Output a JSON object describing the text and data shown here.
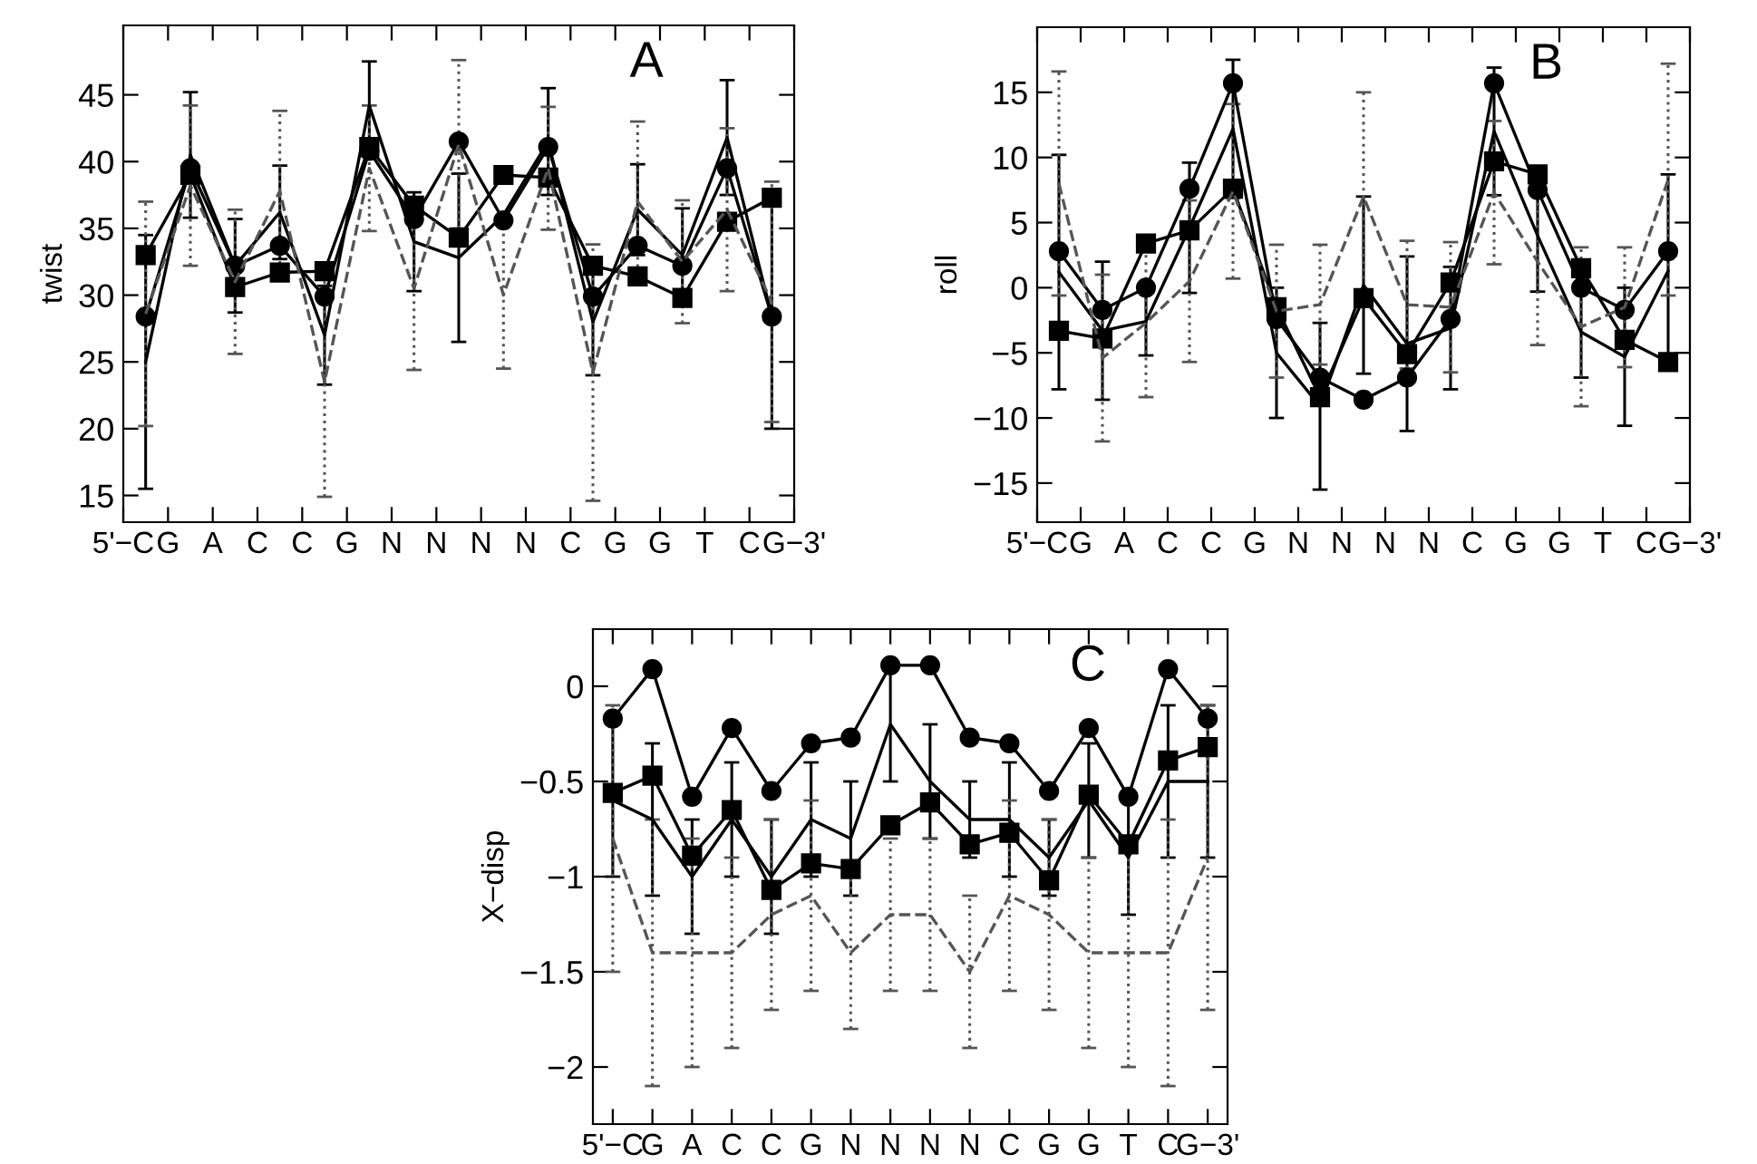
{
  "chart_data": [
    {
      "type": "line",
      "ylabel": "twist",
      "annotations": [
        "A"
      ],
      "categories": [
        "5'−C",
        null,
        "G",
        null,
        "A",
        null,
        "C",
        null,
        "C",
        null,
        "G",
        null,
        "N",
        null,
        "N",
        null,
        "N",
        null,
        "N",
        null,
        "C",
        null,
        "G",
        null,
        "G",
        null,
        "T",
        null,
        "C",
        null,
        "G−3'"
      ],
      "ylim": [
        13,
        50.2
      ],
      "yticks": [
        15,
        20,
        25,
        30,
        35,
        40,
        45
      ],
      "grid": false,
      "legend": false,
      "series": [
        {
          "color": "#000000",
          "marker": "circle",
          "line_style": "solid",
          "values": [
            null,
            28.4,
            null,
            39.5,
            null,
            32.2,
            null,
            33.7,
            null,
            29.9,
            null,
            40.8,
            null,
            35.7,
            null,
            41.5,
            null,
            35.6,
            null,
            41.1,
            null,
            29.9,
            null,
            33.7,
            null,
            32.2,
            null,
            39.5,
            null,
            28.4,
            null
          ]
        },
        {
          "color": "#000000",
          "marker": "square",
          "line_style": "solid",
          "values": [
            null,
            33.0,
            null,
            39.0,
            null,
            30.6,
            null,
            31.7,
            null,
            31.8,
            null,
            41.1,
            null,
            36.7,
            null,
            34.3,
            null,
            39.0,
            null,
            38.8,
            null,
            32.2,
            null,
            31.4,
            null,
            29.8,
            null,
            35.5,
            null,
            37.3,
            null
          ]
        },
        {
          "color": "#000000",
          "marker": "none",
          "line_style": "solid",
          "values": [
            null,
            25.0,
            null,
            40.5,
            null,
            32.2,
            null,
            36.2,
            null,
            27.0,
            null,
            44.2,
            null,
            34.0,
            null,
            32.8,
            null,
            36.0,
            null,
            41.5,
            null,
            28.0,
            null,
            36.4,
            null,
            33.0,
            null,
            41.8,
            null,
            28.4,
            null
          ],
          "errors": [
            null,
            9.5,
            null,
            4.7,
            null,
            3.5,
            null,
            3.5,
            null,
            3.7,
            null,
            3.3,
            null,
            3.7,
            null,
            6.3,
            null,
            null,
            null,
            4.0,
            null,
            4.0,
            null,
            3.4,
            null,
            3.5,
            null,
            4.3,
            null,
            8.4,
            null
          ]
        },
        {
          "color": "#555555",
          "marker": "none",
          "line_style": "dashed",
          "values": [
            null,
            28.6,
            null,
            38.2,
            null,
            31.0,
            null,
            37.8,
            null,
            23.5,
            null,
            39.5,
            null,
            30.5,
            null,
            41.3,
            null,
            30.0,
            null,
            39.5,
            null,
            24.2,
            null,
            37.0,
            null,
            32.5,
            null,
            36.4,
            null,
            29.5,
            null
          ],
          "errors": [
            null,
            8.4,
            null,
            6.0,
            null,
            5.4,
            null,
            6.0,
            null,
            8.6,
            null,
            4.7,
            null,
            6.1,
            null,
            6.3,
            null,
            5.5,
            null,
            4.6,
            null,
            9.6,
            null,
            6.0,
            null,
            4.6,
            null,
            6.1,
            null,
            9.0,
            null
          ]
        }
      ]
    },
    {
      "type": "line",
      "ylabel": "roll",
      "annotations": [
        "B"
      ],
      "categories": [
        "5'−C",
        null,
        "G",
        null,
        "A",
        null,
        "C",
        null,
        "C",
        null,
        "G",
        null,
        "N",
        null,
        "N",
        null,
        "N",
        null,
        "N",
        null,
        "C",
        null,
        "G",
        null,
        "G",
        null,
        "T",
        null,
        "C",
        null,
        "G−3'"
      ],
      "ylim": [
        -18,
        20
      ],
      "yticks": [
        {
          "value": -15,
          "label": "−15"
        },
        {
          "value": -10,
          "label": "−10"
        },
        {
          "value": -5,
          "label": "−5"
        },
        0,
        5,
        10,
        15
      ],
      "grid": false,
      "legend": false,
      "series": [
        {
          "color": "#000000",
          "marker": "circle",
          "line_style": "solid",
          "values": [
            null,
            2.8,
            null,
            -1.7,
            null,
            0,
            null,
            7.6,
            null,
            15.7,
            null,
            -2.4,
            null,
            -6.9,
            null,
            -8.6,
            null,
            -6.9,
            null,
            -2.4,
            null,
            15.7,
            null,
            7.5,
            null,
            0,
            null,
            -1.7,
            null,
            2.8,
            null
          ]
        },
        {
          "color": "#000000",
          "marker": "square",
          "line_style": "solid",
          "values": [
            null,
            -3.3,
            null,
            -3.9,
            null,
            3.4,
            null,
            4.4,
            null,
            7.6,
            null,
            -1.5,
            null,
            -8.4,
            null,
            -0.8,
            null,
            -5.1,
            null,
            0.4,
            null,
            9.7,
            null,
            8.7,
            null,
            1.5,
            null,
            -4.0,
            null,
            -5.7,
            null
          ]
        },
        {
          "color": "#000000",
          "marker": "none",
          "line_style": "solid",
          "values": [
            null,
            1.2,
            null,
            -3.3,
            null,
            -2.6,
            null,
            4.6,
            null,
            12.2,
            null,
            -5.0,
            null,
            -9.1,
            null,
            0.2,
            null,
            -4.3,
            null,
            -3.1,
            null,
            12.0,
            null,
            4.0,
            null,
            -3.4,
            null,
            -5.3,
            null,
            1.3,
            null
          ],
          "errors": [
            null,
            9.0,
            null,
            5.3,
            null,
            2.6,
            null,
            5.0,
            null,
            5.3,
            null,
            5.0,
            null,
            6.4,
            null,
            6.8,
            null,
            6.7,
            null,
            4.7,
            null,
            4.9,
            null,
            4.3,
            null,
            3.5,
            null,
            5.3,
            null,
            7.4,
            null
          ]
        },
        {
          "color": "#555555",
          "marker": "none",
          "line_style": "dashed",
          "values": [
            null,
            8.0,
            null,
            -5.4,
            null,
            -2.7,
            null,
            0.5,
            null,
            7.4,
            null,
            -1.8,
            null,
            -1.3,
            null,
            7.0,
            null,
            -1.3,
            null,
            -1.5,
            null,
            7.3,
            null,
            2.0,
            null,
            -3.0,
            null,
            -1.5,
            null,
            8.3,
            null
          ],
          "errors": [
            null,
            8.6,
            null,
            6.4,
            null,
            5.7,
            null,
            6.2,
            null,
            6.7,
            null,
            5.1,
            null,
            4.6,
            null,
            8.0,
            null,
            4.9,
            null,
            5.0,
            null,
            5.5,
            null,
            6.4,
            null,
            6.1,
            null,
            4.6,
            null,
            8.9,
            null
          ]
        }
      ]
    },
    {
      "type": "line",
      "ylabel": "X−disp",
      "annotations": [
        "C"
      ],
      "categories": [
        "5'−C",
        "G",
        "A",
        "C",
        "C",
        "G",
        "N",
        "N",
        "N",
        "N",
        "C",
        "G",
        "G",
        "T",
        "C",
        "G−3'"
      ],
      "ylim": [
        -2.3,
        0.3
      ],
      "yticks": [
        {
          "value": -2,
          "label": "−2"
        },
        {
          "value": -1.5,
          "label": "−1.5"
        },
        {
          "value": -1,
          "label": "−1"
        },
        {
          "value": -0.5,
          "label": "−0.5"
        },
        0
      ],
      "grid": false,
      "legend": false,
      "series": [
        {
          "color": "#000000",
          "marker": "circle",
          "line_style": "solid",
          "values": [
            -0.17,
            0.09,
            -0.58,
            -0.22,
            -0.55,
            -0.3,
            -0.27,
            0.11,
            0.11,
            -0.27,
            -0.3,
            -0.55,
            -0.22,
            -0.58,
            0.09,
            -0.17
          ]
        },
        {
          "color": "#000000",
          "marker": "square",
          "line_style": "solid",
          "values": [
            -0.56,
            -0.47,
            -0.89,
            -0.65,
            -1.07,
            -0.93,
            -0.96,
            -0.73,
            -0.61,
            -0.83,
            -0.77,
            -1.02,
            -0.57,
            -0.83,
            -0.39,
            -0.32
          ]
        },
        {
          "color": "#000000",
          "marker": "none",
          "line_style": "solid",
          "values": [
            -0.6,
            -0.7,
            -1.0,
            -0.7,
            -1.0,
            -0.7,
            -0.8,
            -0.2,
            -0.5,
            -0.7,
            -0.7,
            -0.9,
            -0.6,
            -0.9,
            -0.5,
            -0.5
          ],
          "errors": [
            0.4,
            0.4,
            0.3,
            0.3,
            0.3,
            0.3,
            0.3,
            0.3,
            0.3,
            0.2,
            0.3,
            0.2,
            0.3,
            0.3,
            0.4,
            0.4
          ]
        },
        {
          "color": "#555555",
          "marker": "none",
          "line_style": "dashed",
          "values": [
            -0.8,
            -1.4,
            -1.4,
            -1.4,
            -1.2,
            -1.1,
            -1.4,
            -1.2,
            -1.2,
            -1.5,
            -1.1,
            -1.2,
            -1.4,
            -1.4,
            -1.4,
            -0.9
          ],
          "errors": [
            0.7,
            0.7,
            0.6,
            0.5,
            0.5,
            0.5,
            0.4,
            0.4,
            0.4,
            0.4,
            0.5,
            0.5,
            0.5,
            0.6,
            0.7,
            0.8
          ]
        }
      ]
    }
  ]
}
